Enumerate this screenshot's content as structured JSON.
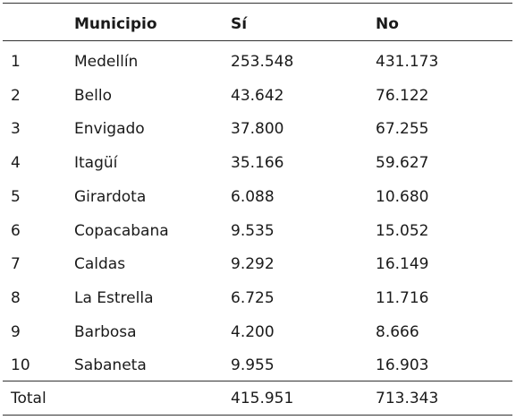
{
  "table": {
    "header": {
      "municipio": "Municipio",
      "si": "Sí",
      "no": "No"
    },
    "rows": [
      [
        "1",
        "Medellín",
        "253.548",
        "431.173"
      ],
      [
        "2",
        "Bello",
        "43.642",
        "76.122"
      ],
      [
        "3",
        "Envigado",
        "37.800",
        "67.255"
      ],
      [
        "4",
        "Itagüí",
        "35.166",
        "59.627"
      ],
      [
        "5",
        "Girardota",
        "6.088",
        "10.680"
      ],
      [
        "6",
        "Copacabana",
        "9.535",
        "15.052"
      ],
      [
        "7",
        "Caldas",
        "9.292",
        "16.149"
      ],
      [
        "8",
        "La Estrella",
        "6.725",
        "11.716"
      ],
      [
        "9",
        "Barbosa",
        "4.200",
        "8.666"
      ],
      [
        "10",
        "Sabaneta",
        "9.955",
        "16.903"
      ]
    ],
    "total": {
      "label": "Total",
      "si": "415.951",
      "no": "713.343"
    }
  }
}
